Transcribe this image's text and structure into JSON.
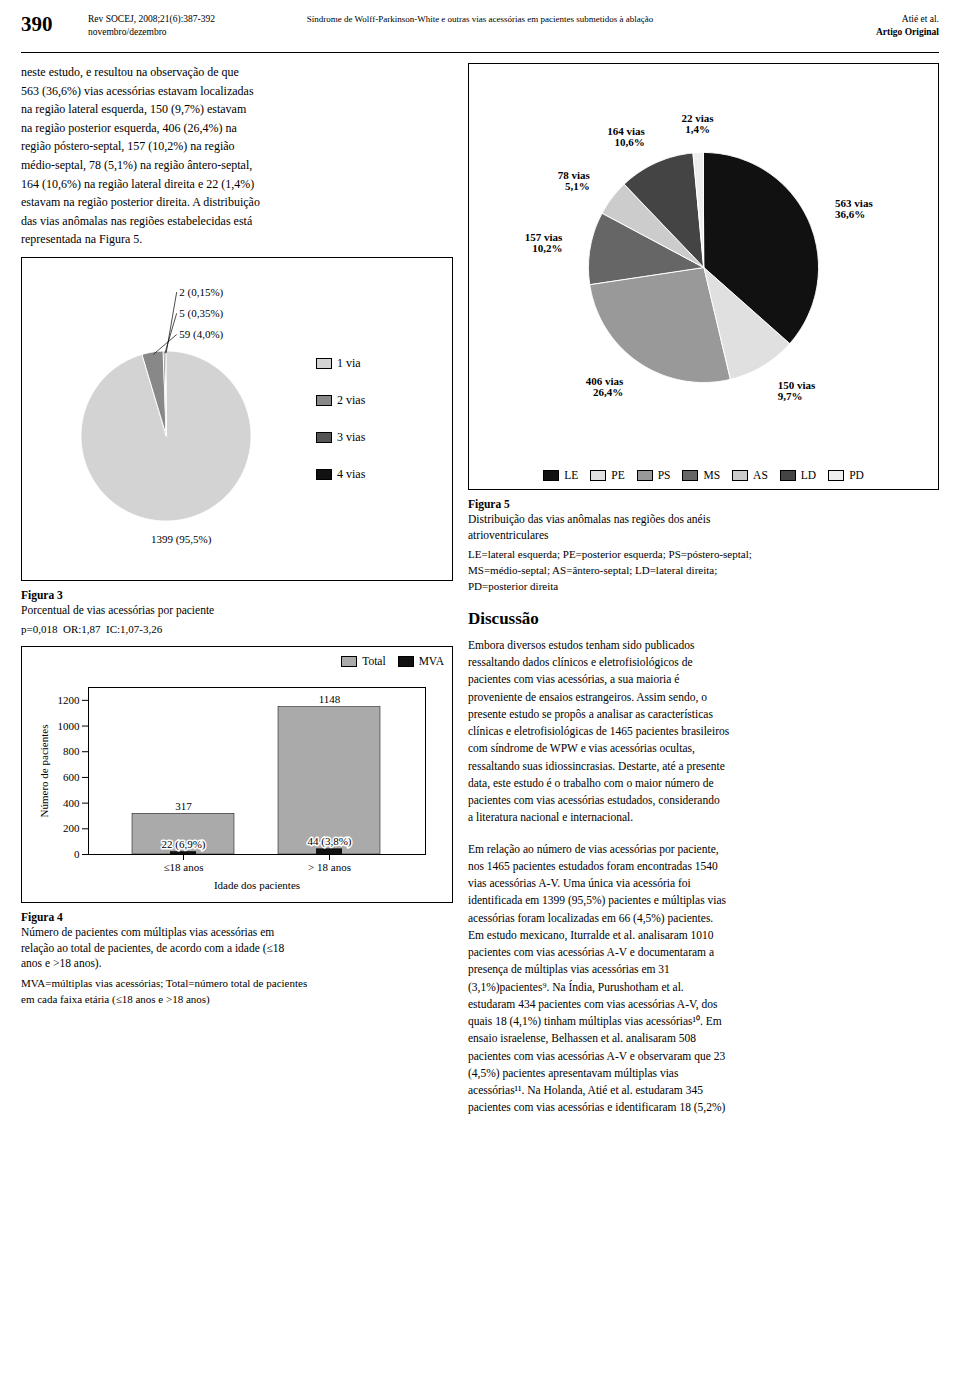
{
  "annotations": [
    "390",
    "Rev SOCEJ, 2008;21(6):387-392",
    "novembro/dezembro",
    "Síndrome de Wolff-Parkinson-White e outras vias acessórias em pacientes submetidos à ablação",
    "Atié et al.",
    "Artigo Original",
    "neste estudo, e resultou na observação de que\n563 (36,6%) vias acessórias estavam localizadas\nna região lateral esquerda, 150 (9,7%) estavam\nna região posterior esquerda, 406 (26,4%) na\nregião póstero-septal, 157 (10,2%) na região\nmédio-septal, 78 (5,1%) na região ântero-septal,\n164 (10,6%) na região lateral direita e 22 (1,4%)\nestavam na região posterior direita. A distribuição\ndas vias anômalas nas regiões estabelecidas está\nrepresentada na Figura 5.",
    "Discussão",
    "Embora diversos estudos tenham sido publicados\nressaltando dados clínicos e eletrofisiológicos de\npacientes com vias acessórias, a sua maioria é\nproveniente de ensaios estrangeiros. Assim sendo, o\npresente estudo se propôs a analisar as características\nclínicas e eletrofisiológicas de 1465 pacientes brasileiros\ncom síndrome de WPW e vias acessórias ocultas,\nressaltando suas idiossincrasias. Destarte, até a presente\ndata, este estudo é o trabalho com o maior número de\npacientes com vias acessórias estudados, considerando\na literatura nacional e internacional.",
    "Em relação ao número de vias acessórias por paciente,\nnos 1465 pacientes estudados foram encontradas 1540\nvias acessórias A-V. Uma única via acessória foi\nidentificada em 1399 (95,5%) pacientes e múltiplas vias\nacessórias foram localizadas em 66 (4,5%) pacientes.\nEm estudo mexicano, Iturralde et al. analisaram 1010\npacientes com vias acessórias A-V e documentaram a\npresença de múltiplas vias acessórias em 31\n(3,1%)pacientes⁹. Na Índia, Purushotham et al.\nestudaram 434 pacientes com vias acessórias A-V, dos\nquais 18 (4,1%) tinham múltiplas vias acessórias¹⁰. Em\nensaio israelense, Belhassen et al. analisaram 508\npacientes com vias acessórias A-V e observaram que 23\n(4,5%) pacientes apresentavam múltiplas vias\nacessórias¹¹. Na Holanda, Atié et al. estudaram 345\npacientes com vias acessórias e identificaram 18 (5,2%)"
  ],
  "chart_data": [
    {
      "type": "pie",
      "title": "Figura 3",
      "subtitle": "Porcentual de vias acessórias por paciente",
      "annotations": [
        "p=0,018  OR:1,87  IC:1,07-3,26"
      ],
      "categories": [
        "1 via",
        "2 vias",
        "3 vias",
        "4 vias"
      ],
      "values": [
        1399,
        59,
        5,
        2
      ],
      "value_labels": [
        "1399 (95,5%)",
        "59 (4,0%)",
        "5 (0,35%)",
        "2 (0,15%)"
      ],
      "colors": [
        "#d3d3d3",
        "#888888",
        "#555555",
        "#111111"
      ],
      "data_labels": true,
      "legend": "right"
    },
    {
      "type": "pie",
      "title": "Figura 5",
      "subtitle": "Distribuição das vias anômalas nas regiões dos anéis\natrioventriculares",
      "annotations": [
        "LE=lateral esquerda; PE=posterior esquerda; PS=póstero-septal;\nMS=médio-septal; AS=ântero-septal; LD=lateral direita;\nPD=posterior direita"
      ],
      "categories": [
        "LE",
        "PE",
        "PS",
        "MS",
        "AS",
        "LD",
        "PD"
      ],
      "values": [
        563,
        150,
        406,
        157,
        78,
        164,
        22
      ],
      "value_labels": [
        "563 vias\n36,6%",
        "150 vias\n9,7%",
        "406 vias\n26,4%",
        "157 vias\n10,2%",
        "78 vias\n5,1%",
        "164 vias\n10,6%",
        "22 vias\n1,4%"
      ],
      "colors": [
        "#111111",
        "#e0e0e0",
        "#999999",
        "#666666",
        "#cccccc",
        "#444444",
        "#eeeeee"
      ],
      "data_labels": true,
      "legend": "bottom"
    },
    {
      "type": "bar",
      "title": "Figura 4",
      "subtitle": "Número de pacientes com múltiplas vias acessórias em\nrelação ao total de pacientes, de acordo com a idade (≤18\nanos e >18 anos).",
      "annotations": [
        "MVA=múltiplas vias acessórias; Total=número total de pacientes\nem cada faixa etária (≤18 anos e >18 anos)"
      ],
      "categories": [
        "≤18 anos",
        "> 18 anos"
      ],
      "series": [
        {
          "name": "Total",
          "color": "#aaaaaa",
          "values": [
            317,
            1148
          ]
        },
        {
          "name": "MVA",
          "color": "#111111",
          "values": [
            22,
            44
          ],
          "value_labels": [
            "22 (6,9%)",
            "44 (3,8%)"
          ]
        }
      ],
      "xlabel": "Idade dos pacientes",
      "ylabel": "Número de pacientes",
      "ylim": [
        0,
        1300
      ],
      "yticks": [
        0,
        200,
        400,
        600,
        800,
        1000,
        1200
      ],
      "data_labels": true,
      "legend": "upper right"
    }
  ]
}
